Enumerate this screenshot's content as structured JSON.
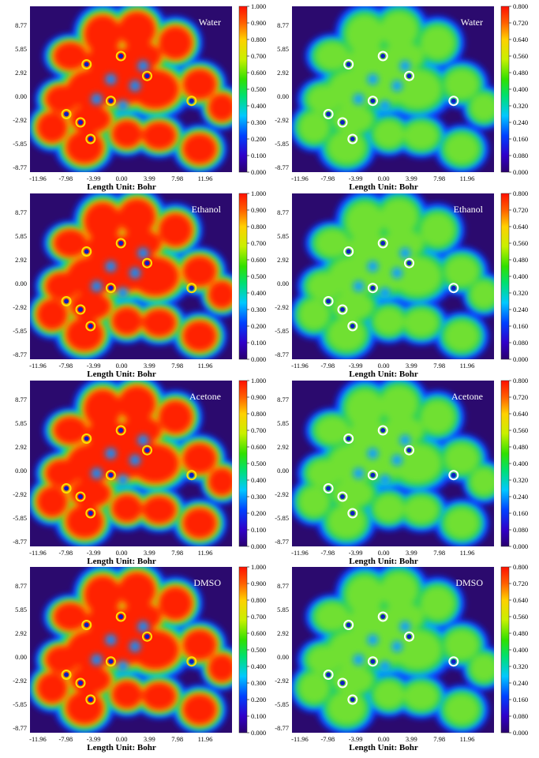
{
  "chart_data": [
    {
      "type": "heatmap",
      "panel": "Water",
      "x_ticks": [
        "-11.96",
        "-7.98",
        "-3.99",
        "0.00",
        "3.99",
        "7.98",
        "11.96"
      ],
      "y_ticks": [
        "8.77",
        "5.85",
        "2.92",
        "0.00",
        "-2.92",
        "-5.85",
        "-8.77"
      ],
      "xlabel": "Length Unit: Bohr",
      "colorbar": {
        "min": 0,
        "max": 1.0,
        "ticks": [
          "1.000",
          "0.900",
          "0.800",
          "0.700",
          "0.600",
          "0.500",
          "0.400",
          "0.300",
          "0.200",
          "0.100",
          "0.000"
        ]
      }
    },
    {
      "type": "heatmap",
      "panel": "Water",
      "x_ticks": [
        "-11.96",
        "-7.98",
        "-3.99",
        "0.00",
        "3.99",
        "7.98",
        "11.96"
      ],
      "y_ticks": [
        "8.77",
        "5.85",
        "2.92",
        "0.00",
        "-2.92",
        "-5.85",
        "-8.77"
      ],
      "xlabel": "Length Unit: Bohr",
      "colorbar": {
        "min": 0,
        "max": 0.8,
        "ticks": [
          "0.800",
          "0.720",
          "0.640",
          "0.560",
          "0.480",
          "0.400",
          "0.320",
          "0.240",
          "0.160",
          "0.080",
          "0.000"
        ]
      }
    },
    {
      "type": "heatmap",
      "panel": "Ethanol",
      "x_ticks": [
        "-11.96",
        "-7.98",
        "-3.99",
        "0.00",
        "3.99",
        "7.98",
        "11.96"
      ],
      "y_ticks": [
        "8.77",
        "5.85",
        "2.92",
        "0.00",
        "-2.92",
        "-5.85",
        "-8.77"
      ],
      "xlabel": "Length Unit: Bohr",
      "colorbar": {
        "min": 0,
        "max": 1.0,
        "ticks": [
          "1.000",
          "0.900",
          "0.800",
          "0.700",
          "0.600",
          "0.500",
          "0.400",
          "0.300",
          "0.200",
          "0.100",
          "0.000"
        ]
      }
    },
    {
      "type": "heatmap",
      "panel": "Ethanol",
      "x_ticks": [
        "-11.96",
        "-7.98",
        "-3.99",
        "0.00",
        "3.99",
        "7.98",
        "11.96"
      ],
      "y_ticks": [
        "8.77",
        "5.85",
        "2.92",
        "0.00",
        "-2.92",
        "-5.85",
        "-8.77"
      ],
      "xlabel": "Length Unit: Bohr",
      "colorbar": {
        "min": 0,
        "max": 0.8,
        "ticks": [
          "0.800",
          "0.720",
          "0.640",
          "0.560",
          "0.480",
          "0.400",
          "0.320",
          "0.240",
          "0.160",
          "0.080",
          "0.000"
        ]
      }
    },
    {
      "type": "heatmap",
      "panel": "Acetone",
      "x_ticks": [
        "-11.96",
        "-7.98",
        "-3.99",
        "0.00",
        "3.99",
        "7.98",
        "11.96"
      ],
      "y_ticks": [
        "8.77",
        "5.85",
        "2.92",
        "0.00",
        "-2.92",
        "-5.85",
        "-8.77"
      ],
      "xlabel": "Length Unit: Bohr",
      "colorbar": {
        "min": 0,
        "max": 1.0,
        "ticks": [
          "1.000",
          "0.900",
          "0.800",
          "0.700",
          "0.600",
          "0.500",
          "0.400",
          "0.300",
          "0.200",
          "0.100",
          "0.000"
        ]
      }
    },
    {
      "type": "heatmap",
      "panel": "Acetone",
      "x_ticks": [
        "-11.96",
        "-7.98",
        "-3.99",
        "0.00",
        "3.99",
        "7.98",
        "11.96"
      ],
      "y_ticks": [
        "8.77",
        "5.85",
        "2.92",
        "0.00",
        "-2.92",
        "-5.85",
        "-8.77"
      ],
      "xlabel": "Length Unit: Bohr",
      "colorbar": {
        "min": 0,
        "max": 0.8,
        "ticks": [
          "0.800",
          "0.720",
          "0.640",
          "0.560",
          "0.480",
          "0.400",
          "0.320",
          "0.240",
          "0.160",
          "0.080",
          "0.000"
        ]
      }
    },
    {
      "type": "heatmap",
      "panel": "DMSO",
      "x_ticks": [
        "-11.96",
        "-7.98",
        "-3.99",
        "0.00",
        "3.99",
        "7.98",
        "11.96"
      ],
      "y_ticks": [
        "8.77",
        "5.85",
        "2.92",
        "0.00",
        "-2.92",
        "-5.85",
        "-8.77"
      ],
      "xlabel": "Length Unit: Bohr",
      "colorbar": {
        "min": 0,
        "max": 1.0,
        "ticks": [
          "1.000",
          "0.900",
          "0.800",
          "0.700",
          "0.600",
          "0.500",
          "0.400",
          "0.300",
          "0.200",
          "0.100",
          "0.000"
        ]
      }
    },
    {
      "type": "heatmap",
      "panel": "DMSO",
      "x_ticks": [
        "-11.96",
        "-7.98",
        "-3.99",
        "0.00",
        "3.99",
        "7.98",
        "11.96"
      ],
      "y_ticks": [
        "8.77",
        "5.85",
        "2.92",
        "0.00",
        "-2.92",
        "-5.85",
        "-8.77"
      ],
      "xlabel": "Length Unit: Bohr",
      "colorbar": {
        "min": 0,
        "max": 0.8,
        "ticks": [
          "0.800",
          "0.720",
          "0.640",
          "0.560",
          "0.480",
          "0.400",
          "0.320",
          "0.240",
          "0.160",
          "0.080",
          "0.000"
        ]
      }
    }
  ],
  "colors": {
    "background": "#2b0a6e",
    "high": "#ff2200",
    "mid": "#20e000",
    "low": "#0020ff"
  }
}
